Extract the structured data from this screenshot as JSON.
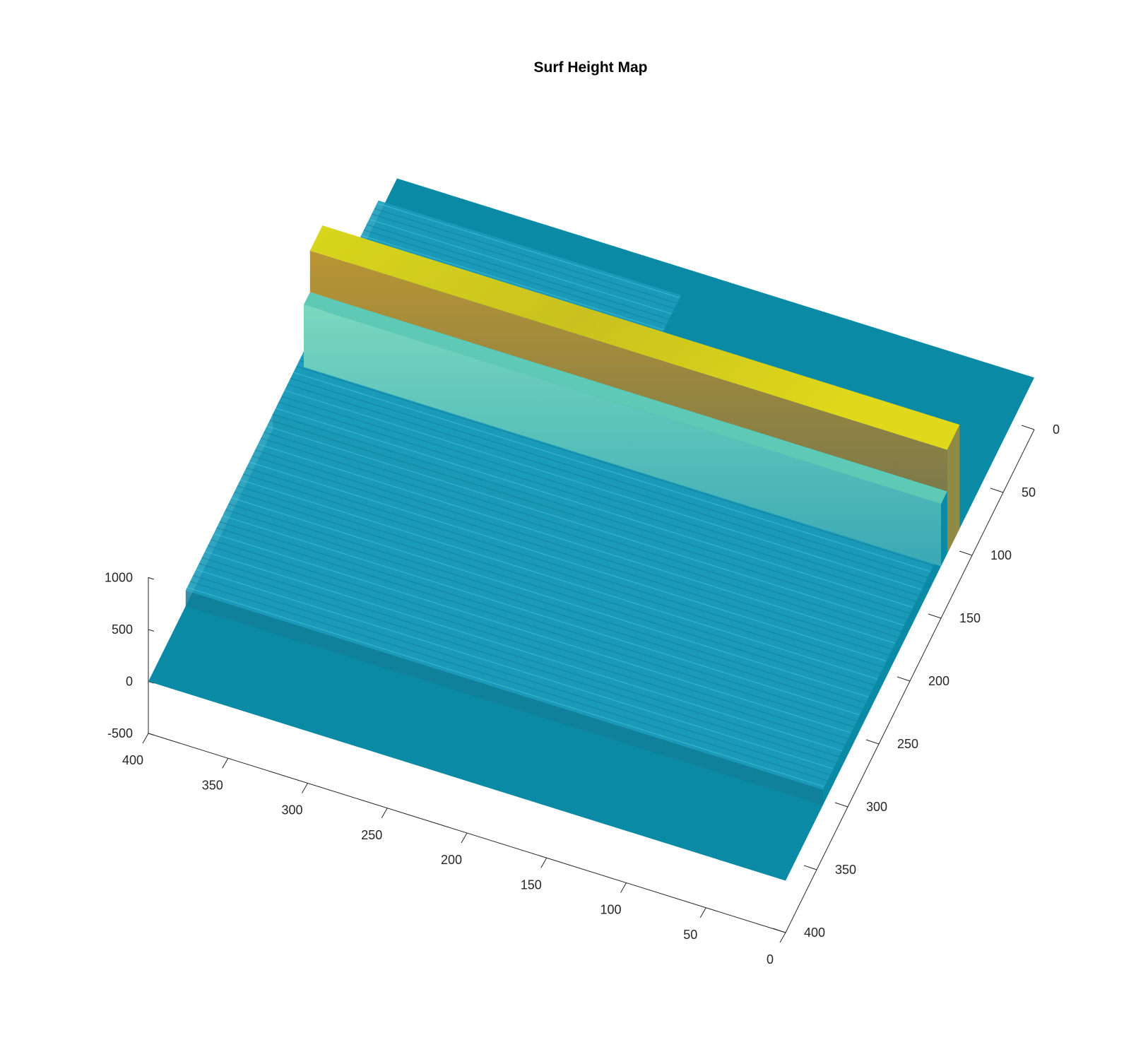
{
  "chart_data": {
    "type": "surface",
    "title": "Surf Height Map",
    "xlabel": "",
    "ylabel": "",
    "zlabel": "",
    "xlim": [
      0,
      400
    ],
    "ylim": [
      0,
      400
    ],
    "zlim": [
      -500,
      1000
    ],
    "x_ticks": [
      0,
      50,
      100,
      150,
      200,
      250,
      300,
      350,
      400
    ],
    "x_tick_labels": [
      "0",
      "50",
      "100",
      "150",
      "200",
      "250",
      "300",
      "350",
      "400"
    ],
    "y_ticks": [
      0,
      50,
      100,
      150,
      200,
      250,
      300,
      350,
      400
    ],
    "y_tick_labels": [
      "0",
      "50",
      "100",
      "150",
      "200",
      "250",
      "300",
      "350",
      "400"
    ],
    "z_ticks": [
      -500,
      0,
      500,
      1000
    ],
    "z_tick_labels": [
      "-500",
      "0",
      "500",
      "1000"
    ],
    "grid": false,
    "legend": "none",
    "colormap": "parula",
    "base_height": 0,
    "ridge": {
      "y_range": [
        120,
        140
      ],
      "x_range": [
        0,
        400
      ],
      "peak_height": 1000
    },
    "shoulder": {
      "y_range": [
        140,
        150
      ],
      "x_range": [
        0,
        400
      ],
      "height": 600
    },
    "raised_regions": [
      {
        "y_range": [
          30,
          200
        ],
        "x_range": [
          210,
          400
        ],
        "height": 150
      },
      {
        "y_range": [
          150,
          340
        ],
        "x_range": [
          0,
          400
        ],
        "height": 150
      }
    ],
    "colors": {
      "base": "#0b8aa6",
      "ridge_top": "#d4d416",
      "ridge_face": "#a08a3a",
      "shoulder": "#5ec9b4",
      "raised": "#1c9bba",
      "highlight": "#6fe0f0"
    }
  }
}
